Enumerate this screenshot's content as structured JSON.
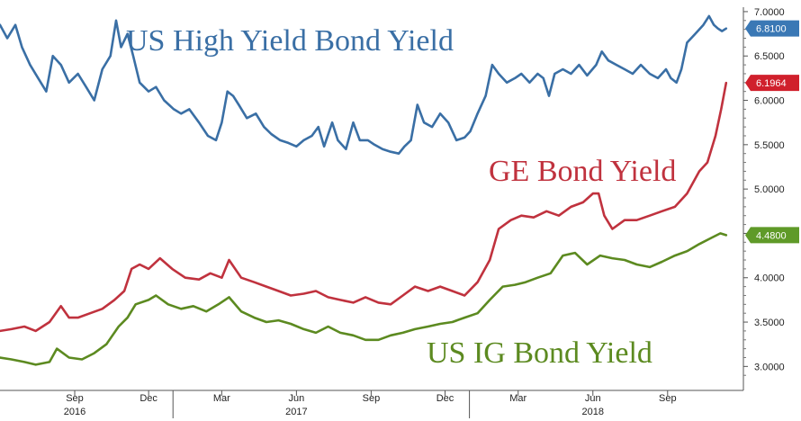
{
  "chart_data": {
    "type": "line",
    "title": "",
    "xlabel": "",
    "ylabel": "",
    "ylim": [
      2.75,
      7.05
    ],
    "y_ticks": [
      "7.0000",
      "6.5000",
      "6.0000",
      "5.5000",
      "5.0000",
      "4.5000",
      "4.0000",
      "3.5000",
      "3.0000"
    ],
    "y_tick_values": [
      7.0,
      6.5,
      6.0,
      5.5,
      5.0,
      4.5,
      4.0,
      3.5,
      3.0
    ],
    "x_ticks": [
      "Sep",
      "Dec",
      "Mar",
      "Jun",
      "Sep",
      "Dec",
      "Mar",
      "Jun",
      "Sep"
    ],
    "x_tick_dates": [
      "2016-09-01",
      "2016-12-01",
      "2017-03-01",
      "2017-06-01",
      "2017-09-01",
      "2017-12-01",
      "2018-03-01",
      "2018-06-01",
      "2018-09-01"
    ],
    "x_years": [
      {
        "label": "2016",
        "date": "2016-09-01"
      },
      {
        "label": "2017",
        "date": "2017-06-01"
      },
      {
        "label": "2018",
        "date": "2018-06-01"
      }
    ],
    "x_range": [
      "2016-06-01",
      "2018-11-30"
    ],
    "grid": false,
    "legend": "none",
    "series": [
      {
        "name": "US High Yield Bond Yield",
        "color": "#3a6fa5",
        "badge_color": "#3a78b5",
        "last_label": "6.8100",
        "last_value": 6.81,
        "points": [
          [
            "2016-06-01",
            6.85
          ],
          [
            "2016-06-10",
            6.7
          ],
          [
            "2016-06-20",
            6.85
          ],
          [
            "2016-06-28",
            6.6
          ],
          [
            "2016-07-08",
            6.4
          ],
          [
            "2016-07-18",
            6.25
          ],
          [
            "2016-07-28",
            6.1
          ],
          [
            "2016-08-05",
            6.5
          ],
          [
            "2016-08-15",
            6.4
          ],
          [
            "2016-08-25",
            6.2
          ],
          [
            "2016-09-05",
            6.3
          ],
          [
            "2016-09-15",
            6.15
          ],
          [
            "2016-09-25",
            6.0
          ],
          [
            "2016-10-05",
            6.35
          ],
          [
            "2016-10-15",
            6.5
          ],
          [
            "2016-10-22",
            6.9
          ],
          [
            "2016-10-28",
            6.6
          ],
          [
            "2016-11-05",
            6.75
          ],
          [
            "2016-11-12",
            6.5
          ],
          [
            "2016-11-20",
            6.2
          ],
          [
            "2016-12-01",
            6.1
          ],
          [
            "2016-12-10",
            6.15
          ],
          [
            "2016-12-20",
            6.0
          ],
          [
            "2017-01-01",
            5.9
          ],
          [
            "2017-01-10",
            5.85
          ],
          [
            "2017-01-20",
            5.9
          ],
          [
            "2017-02-01",
            5.75
          ],
          [
            "2017-02-12",
            5.6
          ],
          [
            "2017-02-22",
            5.55
          ],
          [
            "2017-03-01",
            5.75
          ],
          [
            "2017-03-08",
            6.1
          ],
          [
            "2017-03-15",
            6.05
          ],
          [
            "2017-03-22",
            5.95
          ],
          [
            "2017-04-01",
            5.8
          ],
          [
            "2017-04-12",
            5.85
          ],
          [
            "2017-04-22",
            5.7
          ],
          [
            "2017-05-01",
            5.62
          ],
          [
            "2017-05-12",
            5.55
          ],
          [
            "2017-05-22",
            5.52
          ],
          [
            "2017-06-01",
            5.48
          ],
          [
            "2017-06-10",
            5.55
          ],
          [
            "2017-06-20",
            5.6
          ],
          [
            "2017-06-28",
            5.7
          ],
          [
            "2017-07-05",
            5.48
          ],
          [
            "2017-07-15",
            5.75
          ],
          [
            "2017-07-22",
            5.55
          ],
          [
            "2017-08-01",
            5.45
          ],
          [
            "2017-08-10",
            5.75
          ],
          [
            "2017-08-18",
            5.55
          ],
          [
            "2017-08-28",
            5.55
          ],
          [
            "2017-09-05",
            5.5
          ],
          [
            "2017-09-15",
            5.45
          ],
          [
            "2017-09-25",
            5.42
          ],
          [
            "2017-10-05",
            5.4
          ],
          [
            "2017-10-12",
            5.48
          ],
          [
            "2017-10-20",
            5.55
          ],
          [
            "2017-10-28",
            5.95
          ],
          [
            "2017-11-05",
            5.75
          ],
          [
            "2017-11-15",
            5.7
          ],
          [
            "2017-11-25",
            5.85
          ],
          [
            "2017-12-05",
            5.75
          ],
          [
            "2017-12-15",
            5.55
          ],
          [
            "2017-12-25",
            5.58
          ],
          [
            "2018-01-01",
            5.65
          ],
          [
            "2018-01-10",
            5.85
          ],
          [
            "2018-01-20",
            6.05
          ],
          [
            "2018-01-28",
            6.4
          ],
          [
            "2018-02-05",
            6.3
          ],
          [
            "2018-02-15",
            6.2
          ],
          [
            "2018-02-25",
            6.25
          ],
          [
            "2018-03-05",
            6.3
          ],
          [
            "2018-03-15",
            6.2
          ],
          [
            "2018-03-25",
            6.3
          ],
          [
            "2018-04-01",
            6.25
          ],
          [
            "2018-04-08",
            6.05
          ],
          [
            "2018-04-15",
            6.3
          ],
          [
            "2018-04-25",
            6.35
          ],
          [
            "2018-05-05",
            6.3
          ],
          [
            "2018-05-15",
            6.4
          ],
          [
            "2018-05-25",
            6.28
          ],
          [
            "2018-06-05",
            6.4
          ],
          [
            "2018-06-12",
            6.55
          ],
          [
            "2018-06-20",
            6.45
          ],
          [
            "2018-06-30",
            6.4
          ],
          [
            "2018-07-10",
            6.35
          ],
          [
            "2018-07-20",
            6.3
          ],
          [
            "2018-07-30",
            6.4
          ],
          [
            "2018-08-10",
            6.3
          ],
          [
            "2018-08-20",
            6.25
          ],
          [
            "2018-08-30",
            6.35
          ],
          [
            "2018-09-05",
            6.25
          ],
          [
            "2018-09-12",
            6.2
          ],
          [
            "2018-09-18",
            6.35
          ],
          [
            "2018-09-25",
            6.65
          ],
          [
            "2018-10-05",
            6.75
          ],
          [
            "2018-10-15",
            6.85
          ],
          [
            "2018-10-22",
            6.95
          ],
          [
            "2018-10-28",
            6.85
          ],
          [
            "2018-11-02",
            6.81
          ],
          [
            "2018-11-07",
            6.78
          ],
          [
            "2018-11-12",
            6.81
          ]
        ]
      },
      {
        "name": "GE Bond Yield",
        "color": "#c0323e",
        "badge_color": "#d0202c",
        "last_label": "6.1964",
        "last_value": 6.1964,
        "points": [
          [
            "2016-06-01",
            3.4
          ],
          [
            "2016-06-15",
            3.42
          ],
          [
            "2016-07-01",
            3.45
          ],
          [
            "2016-07-15",
            3.4
          ],
          [
            "2016-08-01",
            3.5
          ],
          [
            "2016-08-15",
            3.68
          ],
          [
            "2016-08-25",
            3.55
          ],
          [
            "2016-09-05",
            3.55
          ],
          [
            "2016-09-20",
            3.6
          ],
          [
            "2016-10-05",
            3.65
          ],
          [
            "2016-10-20",
            3.75
          ],
          [
            "2016-11-01",
            3.85
          ],
          [
            "2016-11-10",
            4.1
          ],
          [
            "2016-11-20",
            4.15
          ],
          [
            "2016-12-01",
            4.1
          ],
          [
            "2016-12-15",
            4.22
          ],
          [
            "2016-12-30",
            4.1
          ],
          [
            "2017-01-15",
            4.0
          ],
          [
            "2017-02-01",
            3.98
          ],
          [
            "2017-02-15",
            4.05
          ],
          [
            "2017-03-01",
            4.0
          ],
          [
            "2017-03-10",
            4.2
          ],
          [
            "2017-03-25",
            4.0
          ],
          [
            "2017-04-10",
            3.95
          ],
          [
            "2017-04-25",
            3.9
          ],
          [
            "2017-05-10",
            3.85
          ],
          [
            "2017-05-25",
            3.8
          ],
          [
            "2017-06-10",
            3.82
          ],
          [
            "2017-06-25",
            3.85
          ],
          [
            "2017-07-10",
            3.78
          ],
          [
            "2017-07-25",
            3.75
          ],
          [
            "2017-08-10",
            3.72
          ],
          [
            "2017-08-25",
            3.78
          ],
          [
            "2017-09-10",
            3.72
          ],
          [
            "2017-09-25",
            3.7
          ],
          [
            "2017-10-10",
            3.8
          ],
          [
            "2017-10-25",
            3.9
          ],
          [
            "2017-11-10",
            3.85
          ],
          [
            "2017-11-25",
            3.9
          ],
          [
            "2017-12-10",
            3.85
          ],
          [
            "2017-12-25",
            3.8
          ],
          [
            "2018-01-10",
            3.95
          ],
          [
            "2018-01-25",
            4.2
          ],
          [
            "2018-02-05",
            4.55
          ],
          [
            "2018-02-20",
            4.65
          ],
          [
            "2018-03-05",
            4.7
          ],
          [
            "2018-03-20",
            4.68
          ],
          [
            "2018-04-05",
            4.75
          ],
          [
            "2018-04-20",
            4.7
          ],
          [
            "2018-05-05",
            4.8
          ],
          [
            "2018-05-20",
            4.85
          ],
          [
            "2018-06-01",
            4.95
          ],
          [
            "2018-06-08",
            4.95
          ],
          [
            "2018-06-15",
            4.7
          ],
          [
            "2018-06-25",
            4.55
          ],
          [
            "2018-07-10",
            4.65
          ],
          [
            "2018-07-25",
            4.65
          ],
          [
            "2018-08-10",
            4.7
          ],
          [
            "2018-08-25",
            4.75
          ],
          [
            "2018-09-10",
            4.8
          ],
          [
            "2018-09-25",
            4.95
          ],
          [
            "2018-10-10",
            5.2
          ],
          [
            "2018-10-20",
            5.3
          ],
          [
            "2018-10-30",
            5.6
          ],
          [
            "2018-11-06",
            5.9
          ],
          [
            "2018-11-12",
            6.1964
          ]
        ]
      },
      {
        "name": "US IG Bond Yield",
        "color": "#5c8a20",
        "badge_color": "#5f9a28",
        "last_label": "4.4800",
        "last_value": 4.48,
        "points": [
          [
            "2016-06-01",
            3.1
          ],
          [
            "2016-06-15",
            3.08
          ],
          [
            "2016-07-01",
            3.05
          ],
          [
            "2016-07-15",
            3.02
          ],
          [
            "2016-08-01",
            3.05
          ],
          [
            "2016-08-10",
            3.2
          ],
          [
            "2016-08-25",
            3.1
          ],
          [
            "2016-09-10",
            3.08
          ],
          [
            "2016-09-25",
            3.15
          ],
          [
            "2016-10-10",
            3.25
          ],
          [
            "2016-10-25",
            3.45
          ],
          [
            "2016-11-05",
            3.55
          ],
          [
            "2016-11-15",
            3.7
          ],
          [
            "2016-12-01",
            3.75
          ],
          [
            "2016-12-10",
            3.8
          ],
          [
            "2016-12-25",
            3.7
          ],
          [
            "2017-01-10",
            3.65
          ],
          [
            "2017-01-25",
            3.68
          ],
          [
            "2017-02-10",
            3.62
          ],
          [
            "2017-02-25",
            3.7
          ],
          [
            "2017-03-10",
            3.78
          ],
          [
            "2017-03-25",
            3.62
          ],
          [
            "2017-04-10",
            3.55
          ],
          [
            "2017-04-25",
            3.5
          ],
          [
            "2017-05-10",
            3.52
          ],
          [
            "2017-05-25",
            3.48
          ],
          [
            "2017-06-10",
            3.42
          ],
          [
            "2017-06-25",
            3.38
          ],
          [
            "2017-07-10",
            3.45
          ],
          [
            "2017-07-25",
            3.38
          ],
          [
            "2017-08-10",
            3.35
          ],
          [
            "2017-08-25",
            3.3
          ],
          [
            "2017-09-10",
            3.3
          ],
          [
            "2017-09-25",
            3.35
          ],
          [
            "2017-10-10",
            3.38
          ],
          [
            "2017-10-25",
            3.42
          ],
          [
            "2017-11-10",
            3.45
          ],
          [
            "2017-11-25",
            3.48
          ],
          [
            "2017-12-10",
            3.5
          ],
          [
            "2017-12-25",
            3.55
          ],
          [
            "2018-01-10",
            3.6
          ],
          [
            "2018-01-25",
            3.75
          ],
          [
            "2018-02-10",
            3.9
          ],
          [
            "2018-02-25",
            3.92
          ],
          [
            "2018-03-10",
            3.95
          ],
          [
            "2018-03-25",
            4.0
          ],
          [
            "2018-04-10",
            4.05
          ],
          [
            "2018-04-25",
            4.25
          ],
          [
            "2018-05-10",
            4.28
          ],
          [
            "2018-05-25",
            4.15
          ],
          [
            "2018-06-10",
            4.25
          ],
          [
            "2018-06-25",
            4.22
          ],
          [
            "2018-07-10",
            4.2
          ],
          [
            "2018-07-25",
            4.15
          ],
          [
            "2018-08-10",
            4.12
          ],
          [
            "2018-08-25",
            4.18
          ],
          [
            "2018-09-10",
            4.25
          ],
          [
            "2018-09-25",
            4.3
          ],
          [
            "2018-10-10",
            4.38
          ],
          [
            "2018-10-25",
            4.45
          ],
          [
            "2018-11-05",
            4.5
          ],
          [
            "2018-11-12",
            4.48
          ]
        ]
      }
    ]
  }
}
